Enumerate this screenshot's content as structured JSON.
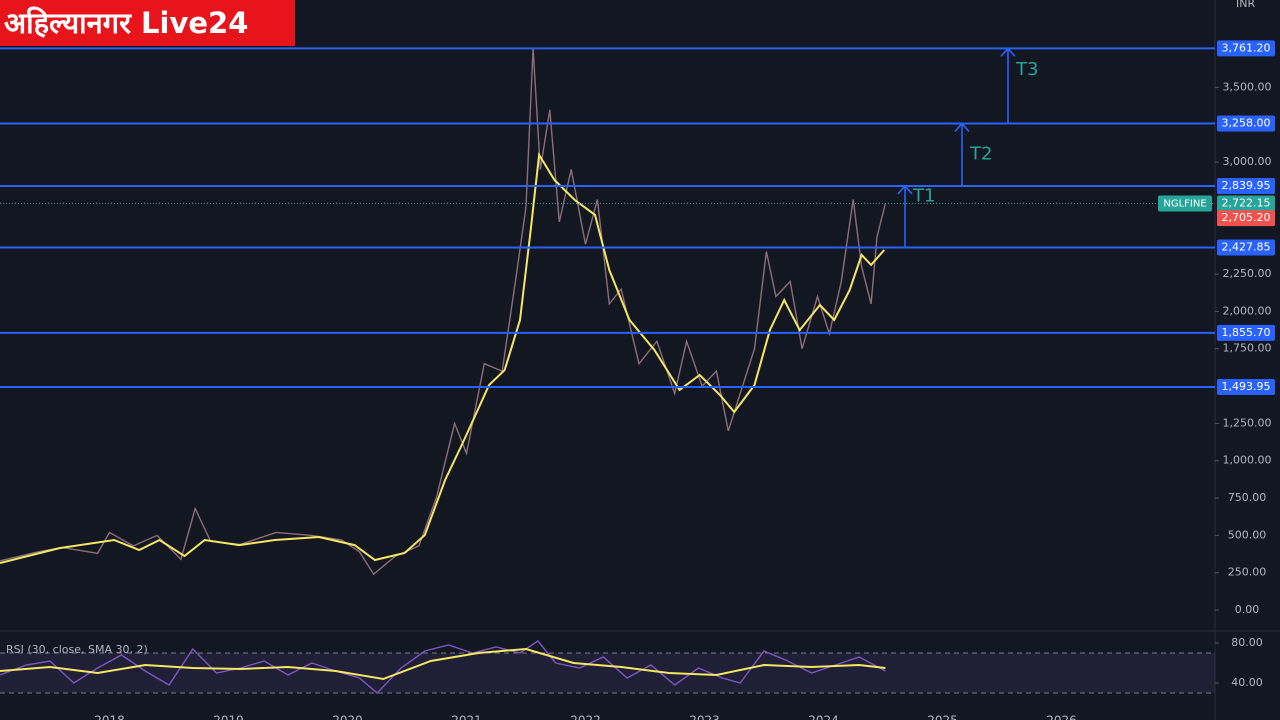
{
  "branding": "अहिल्यानगर Live24",
  "currency": "INR",
  "chart_data": [
    {
      "type": "line",
      "xlim": [
        2017.08,
        2027.29
      ],
      "ylim": [
        -120,
        4085
      ],
      "xticks": [
        2018,
        2019,
        2020,
        2021,
        2022,
        2023,
        2024,
        2025,
        2026
      ],
      "yticks": [
        {
          "value": 0,
          "label": "0.00"
        },
        {
          "value": 250,
          "label": "250.00"
        },
        {
          "value": 500,
          "label": "500.00"
        },
        {
          "value": 750,
          "label": "750.00"
        },
        {
          "value": 1000,
          "label": "1,000.00"
        },
        {
          "value": 1250,
          "label": "1,250.00"
        },
        {
          "value": 1750,
          "label": "1,750.00"
        },
        {
          "value": 2000,
          "label": "2,000.00"
        },
        {
          "value": 2250,
          "label": "2,250.00"
        },
        {
          "value": 3000,
          "label": "3,000.00"
        },
        {
          "value": 3500,
          "label": "3,500.00"
        }
      ],
      "levels": [
        {
          "value": 3761.2,
          "label": "3,761.20"
        },
        {
          "value": 3258,
          "label": "3,258.00"
        },
        {
          "value": 2839.95,
          "label": "2,839.95"
        },
        {
          "value": 2427.85,
          "label": "2,427.85"
        },
        {
          "value": 1855.7,
          "label": "1,855.70"
        },
        {
          "value": 1493.95,
          "label": "1,493.95"
        }
      ],
      "level_color": "#2962ff",
      "targets": [
        "T1",
        "T2",
        "T3"
      ],
      "price_labels": [
        {
          "value": 2722.15,
          "label": "2,722.15",
          "color": "#26a69a"
        },
        {
          "value": 2705.2,
          "label": "2,705.20",
          "color": "#ef5350"
        }
      ],
      "series": [
        {
          "name": "NGLFINE",
          "color": "#8c6e78",
          "x": [
            2017.08,
            2017.4,
            2017.6,
            2017.9,
            2018.0,
            2018.2,
            2018.4,
            2018.6,
            2018.72,
            2018.85,
            2019.1,
            2019.4,
            2019.7,
            2019.95,
            2020.1,
            2020.22,
            2020.4,
            2020.6,
            2020.75,
            2020.9,
            2021.0,
            2021.15,
            2021.3,
            2021.42,
            2021.5,
            2021.56,
            2021.62,
            2021.7,
            2021.78,
            2021.88,
            2022.0,
            2022.1,
            2022.2,
            2022.3,
            2022.45,
            2022.6,
            2022.75,
            2022.85,
            2022.98,
            2023.1,
            2023.2,
            2023.3,
            2023.42,
            2023.52,
            2023.6,
            2023.72,
            2023.82,
            2023.95,
            2024.05,
            2024.15,
            2024.25,
            2024.32,
            2024.4,
            2024.45,
            2024.52
          ],
          "values": [
            330,
            390,
            420,
            380,
            520,
            430,
            500,
            340,
            680,
            460,
            440,
            520,
            500,
            470,
            390,
            240,
            360,
            430,
            760,
            1250,
            1050,
            1650,
            1600,
            2250,
            2700,
            3761.2,
            2950,
            3350,
            2600,
            2950,
            2450,
            2750,
            2050,
            2150,
            1650,
            1800,
            1450,
            1800,
            1500,
            1600,
            1200,
            1450,
            1750,
            2400,
            2100,
            2200,
            1750,
            2100,
            1850,
            2200,
            2750,
            2300,
            2050,
            2500,
            2722.15
          ]
        },
        {
          "color": "#f5e663",
          "x": [
            2017.08,
            2017.58,
            2018.04,
            2018.25,
            2018.42,
            2018.63,
            2018.8,
            2019.09,
            2019.39,
            2019.76,
            2020.06,
            2020.23,
            2020.48,
            2020.65,
            2020.82,
            2020.98,
            2021.19,
            2021.32,
            2021.45,
            2021.54,
            2021.61,
            2021.74,
            2021.91,
            2022.08,
            2022.2,
            2022.37,
            2022.58,
            2022.79,
            2022.96,
            2023.13,
            2023.25,
            2023.42,
            2023.55,
            2023.67,
            2023.8,
            2023.97,
            2024.09,
            2024.22,
            2024.32,
            2024.4,
            2024.51
          ],
          "values": [
            315,
            415,
            469,
            402,
            469,
            362,
            469,
            435,
            469,
            489,
            435,
            335,
            382,
            502,
            871,
            1139,
            1507,
            1607,
            1942,
            2545,
            3048,
            2880,
            2746,
            2646,
            2277,
            1942,
            1741,
            1474,
            1574,
            1440,
            1326,
            1507,
            1875,
            2076,
            1875,
            2043,
            1942,
            2143,
            2378,
            2311,
            2411
          ]
        }
      ]
    },
    {
      "type": "line",
      "title": "RSI (30, close, SMA 30, 2)",
      "xlim": [
        2017.08,
        2027.29
      ],
      "ylim": [
        23,
        91
      ],
      "yticks": [
        {
          "value": 80,
          "label": "80.00"
        },
        {
          "value": 40,
          "label": "40.00"
        }
      ],
      "bands": [
        70,
        30
      ],
      "series": [
        {
          "color": "#7e57c2",
          "x": [
            2017.08,
            2017.3,
            2017.5,
            2017.7,
            2017.9,
            2018.1,
            2018.3,
            2018.5,
            2018.7,
            2018.9,
            2019.1,
            2019.3,
            2019.5,
            2019.7,
            2019.9,
            2020.1,
            2020.25,
            2020.45,
            2020.65,
            2020.85,
            2021.05,
            2021.25,
            2021.45,
            2021.6,
            2021.75,
            2021.95,
            2022.15,
            2022.35,
            2022.55,
            2022.75,
            2022.95,
            2023.15,
            2023.3,
            2023.5,
            2023.7,
            2023.9,
            2024.1,
            2024.3,
            2024.52
          ],
          "values": [
            48,
            58,
            62,
            40,
            55,
            68,
            52,
            38,
            74,
            50,
            55,
            62,
            48,
            60,
            52,
            45,
            30,
            55,
            72,
            78,
            70,
            76,
            70,
            82,
            60,
            55,
            66,
            45,
            58,
            38,
            55,
            45,
            40,
            72,
            62,
            50,
            58,
            66,
            52
          ]
        },
        {
          "color": "#f5e663",
          "x": [
            2017.08,
            2017.5,
            2017.9,
            2018.3,
            2018.7,
            2019.1,
            2019.5,
            2019.9,
            2020.3,
            2020.7,
            2021.1,
            2021.5,
            2021.9,
            2022.3,
            2022.7,
            2023.1,
            2023.5,
            2023.9,
            2024.3,
            2024.52
          ],
          "values": [
            52,
            56,
            50,
            58,
            55,
            54,
            56,
            52,
            44,
            62,
            70,
            74,
            60,
            56,
            50,
            48,
            58,
            56,
            58,
            55
          ]
        }
      ]
    }
  ]
}
